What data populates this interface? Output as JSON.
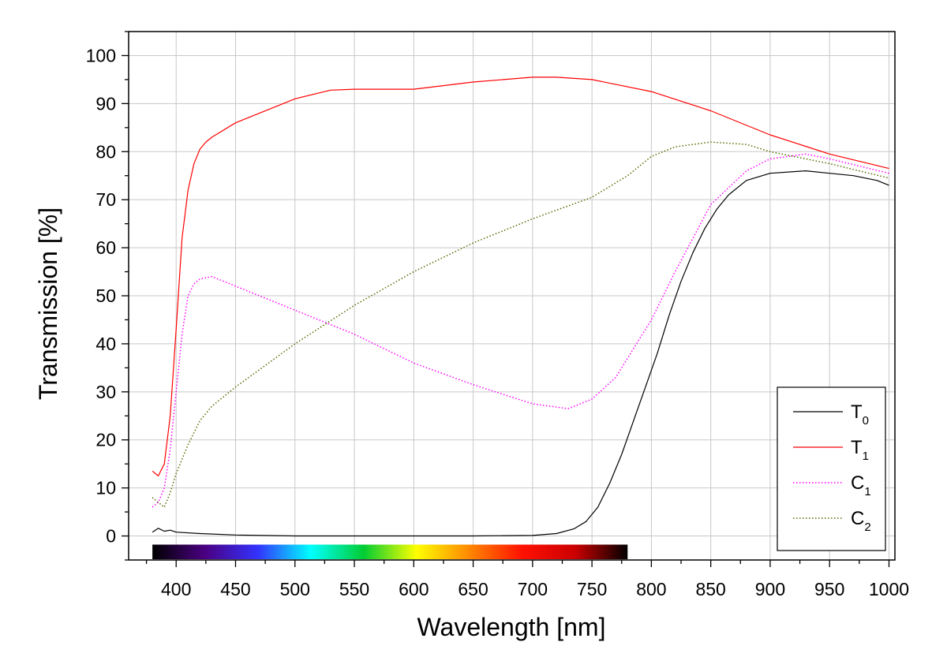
{
  "chart_data": {
    "type": "line",
    "xlabel": "Wavelength [nm]",
    "ylabel": "Transmission [%]",
    "xlim": [
      360,
      1005
    ],
    "ylim": [
      -5,
      105
    ],
    "xticks": [
      400,
      450,
      500,
      550,
      600,
      650,
      700,
      750,
      800,
      850,
      900,
      950,
      1000
    ],
    "yticks": [
      0,
      10,
      20,
      30,
      40,
      50,
      60,
      70,
      80,
      90,
      100
    ],
    "grid": true,
    "legend_position": "bottom-right",
    "spectrum_bar": {
      "range": [
        380,
        780
      ],
      "colors": [
        "#000000",
        "#4b0082",
        "#3333ff",
        "#00ffff",
        "#00cc33",
        "#ffff00",
        "#ff8800",
        "#ff1100",
        "#cc0000",
        "#000000"
      ]
    },
    "series": [
      {
        "name": "T",
        "sub": "0",
        "color": "#000000",
        "style": "solid",
        "x": [
          380,
          385,
          390,
          395,
          400,
          420,
          450,
          500,
          550,
          600,
          650,
          700,
          720,
          735,
          745,
          755,
          765,
          775,
          785,
          795,
          805,
          815,
          825,
          835,
          845,
          855,
          865,
          880,
          900,
          930,
          950,
          970,
          990,
          1000
        ],
        "y": [
          0.8,
          1.6,
          1.0,
          1.2,
          0.8,
          0.5,
          0.2,
          0.0,
          0.0,
          0.0,
          0.0,
          0.1,
          0.5,
          1.5,
          3.0,
          6.0,
          11.0,
          17.0,
          24.0,
          31.0,
          38.0,
          46.0,
          53.0,
          59.0,
          64.0,
          68.0,
          71.0,
          74.0,
          75.5,
          76.0,
          75.5,
          75.0,
          74.0,
          73.0
        ]
      },
      {
        "name": "T",
        "sub": "1",
        "color": "#ff0000",
        "style": "solid",
        "x": [
          380,
          385,
          390,
          395,
          400,
          405,
          410,
          415,
          420,
          425,
          430,
          450,
          500,
          530,
          550,
          600,
          650,
          700,
          720,
          750,
          800,
          850,
          900,
          950,
          1000
        ],
        "y": [
          13.5,
          12.5,
          15.0,
          25.0,
          43.0,
          62.0,
          72.0,
          77.5,
          80.5,
          82.0,
          83.0,
          86.0,
          91.0,
          92.8,
          93.0,
          93.0,
          94.5,
          95.5,
          95.5,
          95.0,
          92.5,
          88.5,
          83.5,
          79.5,
          76.5
        ]
      },
      {
        "name": "C",
        "sub": "1",
        "color": "#ff00ff",
        "style": "dotted",
        "x": [
          380,
          385,
          390,
          395,
          400,
          405,
          410,
          415,
          420,
          430,
          450,
          500,
          550,
          600,
          650,
          700,
          730,
          750,
          770,
          790,
          800,
          820,
          850,
          880,
          900,
          930,
          950,
          1000
        ],
        "y": [
          6.0,
          7.0,
          10.0,
          18.0,
          30.0,
          42.0,
          50.0,
          52.5,
          53.5,
          54.0,
          52.0,
          47.0,
          42.0,
          36.0,
          31.5,
          27.5,
          26.5,
          28.5,
          33.0,
          41.0,
          45.0,
          55.0,
          69.0,
          76.0,
          78.5,
          79.5,
          78.5,
          75.5
        ]
      },
      {
        "name": "C",
        "sub": "2",
        "color": "#556b00",
        "style": "dotted",
        "x": [
          380,
          385,
          390,
          395,
          400,
          410,
          420,
          430,
          450,
          500,
          550,
          600,
          650,
          700,
          750,
          780,
          800,
          820,
          850,
          880,
          900,
          950,
          1000
        ],
        "y": [
          8.0,
          7.0,
          6.0,
          9.0,
          13.0,
          19.0,
          24.0,
          27.0,
          31.0,
          40.0,
          48.0,
          55.0,
          61.0,
          66.0,
          70.5,
          75.0,
          79.0,
          81.0,
          82.0,
          81.5,
          80.0,
          77.5,
          74.5
        ]
      }
    ]
  }
}
